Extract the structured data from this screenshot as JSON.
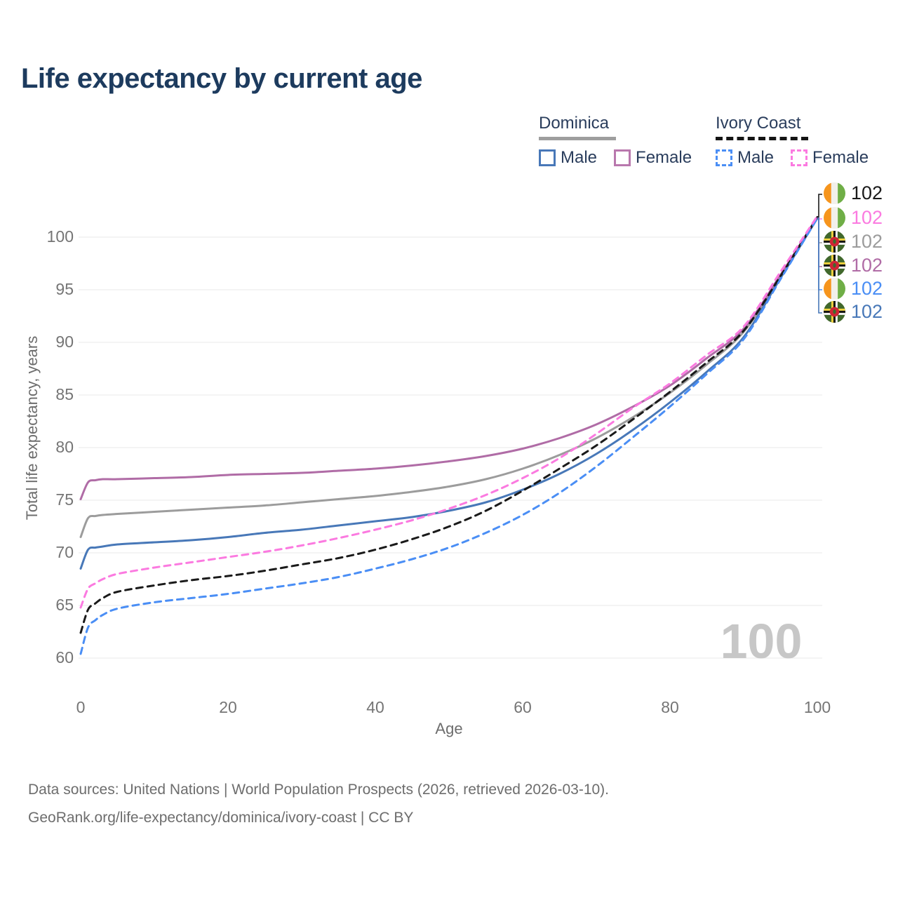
{
  "title": "Life expectancy by current age",
  "watermark": "100",
  "legend": {
    "groups": [
      {
        "country": "Dominica",
        "style": "solid",
        "underline_color": "#9e9e9e",
        "items": [
          {
            "label": "Male",
            "color": "#4878b8"
          },
          {
            "label": "Female",
            "color": "#b978ad"
          }
        ]
      },
      {
        "country": "Ivory Coast",
        "style": "dashed",
        "underline_color": "#141414",
        "items": [
          {
            "label": "Male",
            "color": "#4a8ef5"
          },
          {
            "label": "Female",
            "color": "#fb7ae0"
          }
        ]
      }
    ]
  },
  "footer": {
    "line1": "Data sources: United Nations | World Population Prospects (2026, retrieved 2026-03-10).",
    "line2": "GeoRank.org/life-expectancy/dominica/ivory-coast | CC BY"
  },
  "chart_data": {
    "type": "line",
    "title": "Life expectancy by current age",
    "xlabel": "Age",
    "ylabel": "Total life expectancy, years",
    "xlim": [
      0,
      100
    ],
    "ylim": [
      58.5,
      103.5
    ],
    "xticks": [
      0,
      20,
      40,
      60,
      80,
      100
    ],
    "yticks": [
      60,
      65,
      70,
      75,
      80,
      85,
      90,
      95,
      100
    ],
    "grid": "horizontal-only",
    "grid_color": "#e8e8e8",
    "age_indicator": "100",
    "x": [
      0,
      1,
      2,
      3,
      5,
      10,
      15,
      20,
      25,
      30,
      35,
      40,
      45,
      50,
      55,
      60,
      65,
      70,
      75,
      80,
      85,
      90,
      95,
      100
    ],
    "series": [
      {
        "name": "Dominica (both sexes)",
        "country": "Dominica",
        "sex": "All",
        "style": "solid",
        "color": "#9c9c9c",
        "end_label": "102",
        "values": [
          71.5,
          73.3,
          73.5,
          73.6,
          73.7,
          73.9,
          74.1,
          74.3,
          74.5,
          74.8,
          75.1,
          75.4,
          75.8,
          76.3,
          77.0,
          78.0,
          79.3,
          80.9,
          82.9,
          85.2,
          87.9,
          91.0,
          96.2,
          101.8
        ]
      },
      {
        "name": "Dominica Male",
        "country": "Dominica",
        "sex": "Male",
        "style": "solid",
        "color": "#4878b8",
        "end_label": "102",
        "values": [
          68.5,
          70.3,
          70.5,
          70.6,
          70.8,
          71.0,
          71.2,
          71.5,
          71.9,
          72.2,
          72.6,
          73.0,
          73.4,
          74.0,
          74.8,
          76.0,
          77.5,
          79.4,
          81.7,
          84.3,
          87.2,
          90.5,
          96.1,
          101.8
        ]
      },
      {
        "name": "Dominica Female",
        "country": "Dominica",
        "sex": "Female",
        "style": "solid",
        "color": "#b06ca6",
        "end_label": "102",
        "values": [
          75.1,
          76.7,
          76.9,
          77.0,
          77.0,
          77.1,
          77.2,
          77.4,
          77.5,
          77.6,
          77.8,
          78.0,
          78.3,
          78.7,
          79.2,
          79.9,
          80.9,
          82.2,
          83.9,
          85.9,
          88.5,
          91.3,
          96.4,
          101.9
        ]
      },
      {
        "name": "Ivory Coast (both sexes)",
        "country": "Ivory Coast",
        "sex": "All",
        "style": "dashed",
        "color": "#1a1a1a",
        "end_label": "102",
        "values": [
          62.4,
          64.6,
          65.2,
          65.7,
          66.3,
          66.9,
          67.4,
          67.8,
          68.3,
          68.9,
          69.5,
          70.3,
          71.3,
          72.5,
          74.0,
          75.9,
          78.0,
          80.2,
          82.7,
          85.3,
          88.1,
          91.1,
          96.3,
          101.9
        ]
      },
      {
        "name": "Ivory Coast Male",
        "country": "Ivory Coast",
        "sex": "Male",
        "style": "dashed",
        "color": "#4a8ef5",
        "end_label": "102",
        "values": [
          60.4,
          62.9,
          63.6,
          64.1,
          64.7,
          65.3,
          65.7,
          66.1,
          66.6,
          67.1,
          67.7,
          68.5,
          69.4,
          70.5,
          71.9,
          73.6,
          75.7,
          78.2,
          81.0,
          83.9,
          87.0,
          90.3,
          96.0,
          101.8
        ]
      },
      {
        "name": "Ivory Coast Female",
        "country": "Ivory Coast",
        "sex": "Female",
        "style": "dashed",
        "color": "#fb7ae0",
        "end_label": "102",
        "values": [
          64.8,
          66.6,
          67.1,
          67.5,
          68.0,
          68.6,
          69.1,
          69.6,
          70.1,
          70.7,
          71.4,
          72.2,
          73.1,
          74.2,
          75.5,
          77.1,
          79.0,
          81.3,
          83.8,
          86.1,
          88.8,
          91.5,
          96.7,
          102.0
        ]
      }
    ],
    "end_labels": [
      {
        "label": "102",
        "country": "Ivory Coast",
        "color": "#1a1a1a"
      },
      {
        "label": "102",
        "country": "Ivory Coast",
        "color": "#fb7ae0"
      },
      {
        "label": "102",
        "country": "Dominica",
        "color": "#9c9c9c"
      },
      {
        "label": "102",
        "country": "Dominica",
        "color": "#b06ca6"
      },
      {
        "label": "102",
        "country": "Ivory Coast",
        "color": "#4a8ef5"
      },
      {
        "label": "102",
        "country": "Dominica",
        "color": "#4878b8"
      }
    ],
    "legend_position": "top-right"
  }
}
